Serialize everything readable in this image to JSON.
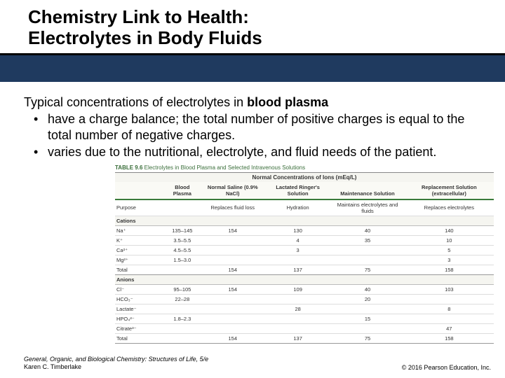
{
  "title_line1": "Chemistry Link to Health:",
  "title_line2": "Electrolytes in Body Fluids",
  "lead_prefix": "Typical concentrations of electrolytes in ",
  "lead_bold": "blood plasma",
  "bullets": [
    "have a charge balance; the total number of positive charges is equal to the total number of negative charges.",
    "varies due to the nutritional, electrolyte, and fluid needs of the patient."
  ],
  "table": {
    "caption_label": "TABLE 9.6",
    "caption_text": "Electrolytes in Blood Plasma and Selected Intravenous Solutions",
    "super_header": "Normal Concentrations of Ions (mEq/L)",
    "columns": [
      "",
      "Blood Plasma",
      "Normal Saline (0.9% NaCl)",
      "Lactated Ringer's Solution",
      "Maintenance Solution",
      "Replacement Solution (extracellular)"
    ],
    "purpose_row": [
      "Purpose",
      "",
      "Replaces fluid loss",
      "Hydration",
      "Maintains electrolytes and fluids",
      "Replaces electrolytes"
    ],
    "sections": [
      {
        "label": "Cations",
        "rows": [
          [
            "Na⁺",
            "135–145",
            "154",
            "130",
            "40",
            "140"
          ],
          [
            "K⁺",
            "3.5–5.5",
            "",
            "4",
            "35",
            "10"
          ],
          [
            "Ca²⁺",
            "4.5–5.5",
            "",
            "3",
            "",
            "5"
          ],
          [
            "Mg²⁺",
            "1.5–3.0",
            "",
            "",
            "",
            "3"
          ]
        ],
        "total": [
          "Total",
          "",
          "154",
          "137",
          "75",
          "158"
        ]
      },
      {
        "label": "Anions",
        "rows": [
          [
            "Cl⁻",
            "95–105",
            "154",
            "109",
            "40",
            "103"
          ],
          [
            "HCO₃⁻",
            "22–28",
            "",
            "",
            "20",
            ""
          ],
          [
            "Lactate⁻",
            "",
            "",
            "28",
            "",
            "8"
          ],
          [
            "HPO₄²⁻",
            "1.8–2.3",
            "",
            "",
            "15",
            ""
          ],
          [
            "Citrate³⁻",
            "",
            "",
            "",
            "",
            "47"
          ]
        ],
        "total": [
          "Total",
          "",
          "154",
          "137",
          "75",
          "158"
        ]
      }
    ]
  },
  "footer": {
    "book": "General, Organic, and Biological Chemistry: Structures of Life, 5/e",
    "author": "Karen C. Timberlake",
    "copyright": "© 2016 Pearson Education, Inc."
  },
  "colors": {
    "blue_bar": "#1f3a5f",
    "table_green": "#3a7a3a"
  }
}
